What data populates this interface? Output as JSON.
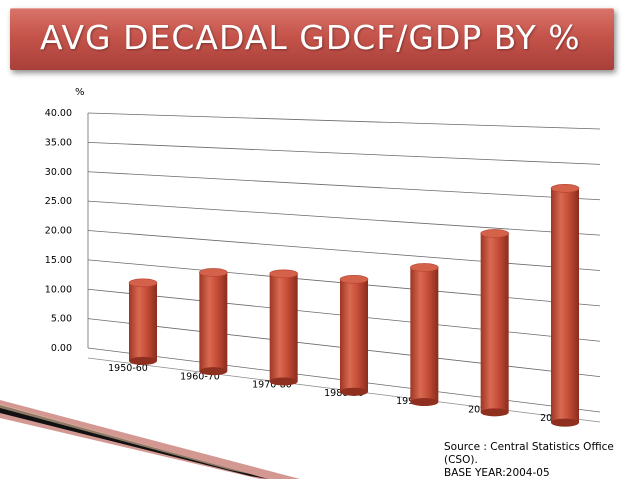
{
  "title": "AVG DECADAL GDCF/GDP BY %",
  "source": {
    "line1": "Source : Central Statistics Office (CSO).",
    "line2": "BASE YEAR:2004-05"
  },
  "colors": {
    "banner": "#c5544b",
    "bar": "#c9503a",
    "bar_top": "#d86a52"
  },
  "chart_data": {
    "type": "bar",
    "title": "",
    "ylabel": "%",
    "xlabel": "",
    "categories": [
      "1950-60",
      "1960-70",
      "1970-80",
      "1980-90",
      "1990-00",
      "2000-08",
      "2008-12"
    ],
    "values": [
      13.0,
      16.0,
      17.0,
      17.3,
      20.2,
      26.2,
      33.5
    ],
    "ylim": [
      0,
      40
    ],
    "yticks": [
      "0.00",
      "5.00",
      "10.00",
      "15.00",
      "20.00",
      "25.00",
      "30.00",
      "35.00",
      "40.00"
    ],
    "grid": true,
    "legend": "none"
  }
}
